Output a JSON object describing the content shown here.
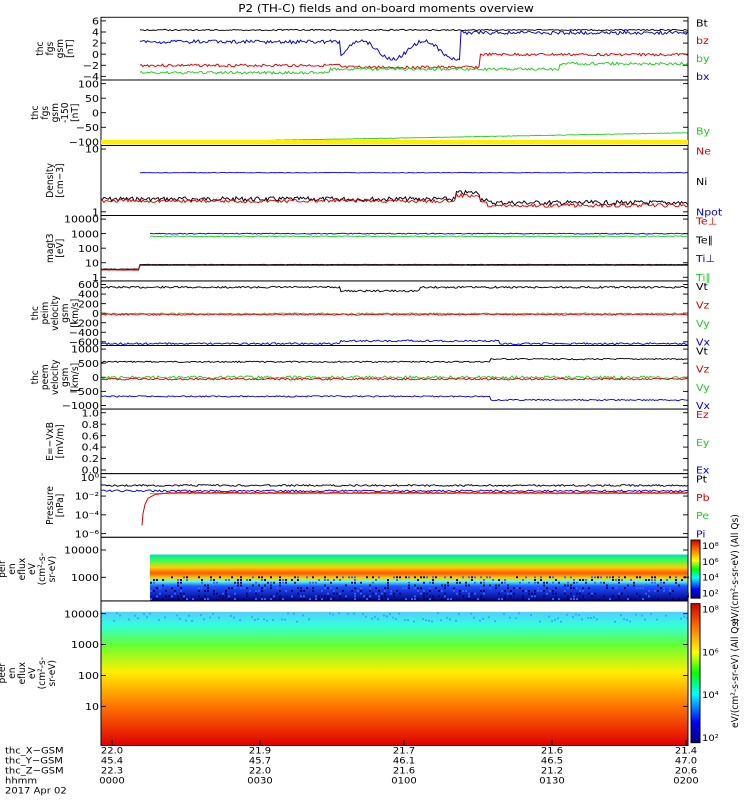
{
  "title": "P2 (TH-C) fields and on-board moments overview",
  "colors": {
    "black": "#000000",
    "red": "#e00000",
    "green": "#22cc22",
    "blue": "#0000dd",
    "yellow": "#ffee00"
  },
  "panels": [
    {
      "id": "fgs",
      "ylabel": [
        "thc",
        "fgs",
        "gsm",
        "[nT]"
      ],
      "yticks": [
        "6",
        "4",
        "2",
        "0",
        "−2",
        "−4"
      ],
      "legend": [
        {
          "t": "Bt",
          "c": "black"
        },
        {
          "t": "bz",
          "c": "red"
        },
        {
          "t": "by",
          "c": "green"
        },
        {
          "t": "bx",
          "c": "blue"
        }
      ]
    },
    {
      "id": "fgs_dsl",
      "ylabel": [
        "thc",
        "fgs",
        "gsm",
        "-150",
        "[nT]"
      ],
      "yticks": [
        "100",
        "50",
        "0",
        "−50",
        "−100"
      ],
      "legend": [
        {
          "t": "By",
          "c": "green"
        }
      ]
    },
    {
      "id": "density",
      "ylabel": [
        "Density",
        "[cm−3]"
      ],
      "yticks": [
        "10",
        "1"
      ],
      "legend": [
        {
          "t": "Ne",
          "c": "red"
        },
        {
          "t": "Ni",
          "c": "black"
        },
        {
          "t": "Npot",
          "c": "blue"
        }
      ]
    },
    {
      "id": "temp",
      "ylabel": [
        "magt3",
        "[eV]"
      ],
      "yticks": [
        "10000",
        "1000",
        "100",
        "10",
        "1"
      ],
      "legend": [
        {
          "t": "Te⊥",
          "c": "red"
        },
        {
          "t": "Te∥",
          "c": "black"
        },
        {
          "t": "Ti⊥",
          "c": "blue"
        },
        {
          "t": "Ti∥",
          "c": "green"
        }
      ]
    },
    {
      "id": "vi",
      "ylabel": [
        "thc",
        "peim",
        "velocity",
        "gsm",
        "[km/s]"
      ],
      "yticks": [
        "600",
        "400",
        "200",
        "0",
        "−200",
        "−400",
        "−600"
      ],
      "legend": [
        {
          "t": "Vt",
          "c": "black"
        },
        {
          "t": "Vz",
          "c": "red"
        },
        {
          "t": "Vy",
          "c": "green"
        },
        {
          "t": "Vx",
          "c": "blue"
        }
      ]
    },
    {
      "id": "ve",
      "ylabel": [
        "thc",
        "peem",
        "velocity",
        "gsm",
        "[km/s]"
      ],
      "yticks": [
        "1000",
        "500",
        "0",
        "−500",
        "−1000"
      ],
      "legend": [
        {
          "t": "Vt",
          "c": "black"
        },
        {
          "t": "Vz",
          "c": "red"
        },
        {
          "t": "Vy",
          "c": "green"
        },
        {
          "t": "Vx",
          "c": "blue"
        }
      ]
    },
    {
      "id": "efield",
      "ylabel": [
        "E=−VxB",
        "[mV/m]"
      ],
      "yticks": [
        "1.0",
        "0.8",
        "0.6",
        "0.4",
        "0.2",
        "0.0"
      ],
      "legend": [
        {
          "t": "Ez",
          "c": "red"
        },
        {
          "t": "Ey",
          "c": "green"
        },
        {
          "t": "Ex",
          "c": "blue"
        }
      ]
    },
    {
      "id": "pressure",
      "ylabel": [
        "Pressure",
        "[nPa]"
      ],
      "yticks": [
        "10⁰",
        "10⁻²",
        "10⁻⁴",
        "10⁻⁶"
      ],
      "legend": [
        {
          "t": "Pt",
          "c": "black"
        },
        {
          "t": "Pb",
          "c": "red"
        },
        {
          "t": "Pe",
          "c": "green"
        },
        {
          "t": "Pi",
          "c": "blue"
        }
      ]
    },
    {
      "id": "ion_spec",
      "ylabel": [
        "thc",
        "peir",
        "en",
        "eflux",
        "eV",
        "(cm²-s-",
        "sr-eV)"
      ],
      "yticks": [
        "10000",
        "1000"
      ],
      "cbar_ticks": [
        "10⁸",
        "10⁶",
        "10⁴",
        "10²"
      ],
      "cbar_label": "eV/(cm²-s-sr-eV) (All Qs)"
    },
    {
      "id": "ele_spec",
      "ylabel": [
        "thc",
        "peer",
        "en",
        "eflux",
        "eV",
        "(cm²-s-",
        "sr-eV)"
      ],
      "yticks": [
        "10000",
        "1000",
        "100",
        "10"
      ],
      "cbar_ticks": [
        "10⁸",
        "10⁶",
        "10⁴",
        "10²"
      ],
      "cbar_label": "eV/(cm²-s-sr-eV) (All Qs)"
    }
  ],
  "xaxis": {
    "rows": [
      {
        "label": "thc_X−GSM",
        "vals": [
          "22.0",
          "21.9",
          "21.7",
          "21.6",
          "21.4"
        ]
      },
      {
        "label": "thc_Y−GSM",
        "vals": [
          "45.4",
          "45.7",
          "46.1",
          "46.5",
          "47.0"
        ]
      },
      {
        "label": "thc_Z−GSM",
        "vals": [
          "22.3",
          "22.0",
          "21.6",
          "21.2",
          "20.6"
        ]
      },
      {
        "label": "hhmm",
        "vals": [
          "0000",
          "0030",
          "0100",
          "0130",
          "0200"
        ]
      }
    ],
    "date": "2017 Apr 02"
  },
  "chart_data": [
    {
      "type": "line",
      "title": "P2 (TH-C) fields and on-board moments overview",
      "ylabel": "thc fgs gsm [nT]",
      "ylim": [
        -4,
        6
      ],
      "x": [
        "0000",
        "0030",
        "0100",
        "0130",
        "0200"
      ],
      "series": [
        {
          "name": "Bt",
          "values": [
            4,
            4,
            3.8,
            3.7,
            3.6
          ]
        },
        {
          "name": "bz",
          "values": [
            -1.5,
            -1.2,
            -2.5,
            0,
            -0.2
          ]
        },
        {
          "name": "by",
          "values": [
            -3.5,
            -2.8,
            -2.2,
            -1.5,
            -1.3
          ]
        },
        {
          "name": "bx",
          "values": [
            2.5,
            1,
            -2.5,
            3.5,
            3.2
          ]
        }
      ]
    },
    {
      "type": "line",
      "ylabel": "thc fgs gsm -150 [nT]",
      "ylim": [
        -120,
        100
      ],
      "series": [
        {
          "name": "By",
          "values": [
            -108,
            -106,
            -100,
            -94,
            -85
          ]
        }
      ]
    },
    {
      "type": "line",
      "ylabel": "Density [cm−3]",
      "ylim": [
        1,
        10
      ],
      "log": true,
      "series": [
        {
          "name": "Ne",
          "values": [
            1.9,
            1.8,
            2.2,
            1.6,
            1.6
          ]
        },
        {
          "name": "Ni",
          "values": [
            2.0,
            1.9,
            2.4,
            1.7,
            1.7
          ]
        },
        {
          "name": "Npot",
          "values": [
            5.5,
            5.6,
            5.5,
            5.4,
            5.5
          ]
        }
      ]
    },
    {
      "type": "line",
      "ylabel": "magt3 [eV]",
      "ylim": [
        1,
        10000
      ],
      "log": true,
      "series": [
        {
          "name": "Te∥",
          "values": [
            10,
            17,
            17,
            17,
            17
          ]
        },
        {
          "name": "Ti∥",
          "values": [
            1100,
            1100,
            1100,
            1200,
            1200
          ]
        },
        {
          "name": "Ti⊥",
          "values": [
            1400,
            1300,
            1400,
            1400,
            1400
          ]
        }
      ]
    },
    {
      "type": "line",
      "ylabel": "thc peim velocity gsm [km/s]",
      "ylim": [
        -600,
        600
      ],
      "series": [
        {
          "name": "Vt",
          "values": [
            530,
            530,
            480,
            530,
            530
          ]
        },
        {
          "name": "Vz",
          "values": [
            0,
            0,
            0,
            0,
            0
          ]
        },
        {
          "name": "Vy",
          "values": [
            0,
            0,
            10,
            0,
            0
          ]
        },
        {
          "name": "Vx",
          "values": [
            -530,
            -520,
            -480,
            -520,
            -520
          ]
        }
      ]
    },
    {
      "type": "line",
      "ylabel": "thc peem velocity gsm [km/s]",
      "ylim": [
        -1000,
        1000
      ],
      "series": [
        {
          "name": "Vt",
          "values": [
            550,
            560,
            560,
            640,
            660
          ]
        },
        {
          "name": "Vz",
          "values": [
            0,
            0,
            0,
            0,
            0
          ]
        },
        {
          "name": "Vy",
          "values": [
            20,
            20,
            20,
            20,
            20
          ]
        },
        {
          "name": "Vx",
          "values": [
            -560,
            -560,
            -560,
            -640,
            -660
          ]
        }
      ]
    },
    {
      "type": "line",
      "ylabel": "E=−VxB [mV/m]",
      "ylim": [
        0,
        1
      ],
      "series": []
    },
    {
      "type": "line",
      "ylabel": "Pressure [nPa]",
      "log": true,
      "series": [
        {
          "name": "Pt",
          "values": [
            0.05,
            0.05,
            0.05,
            0.05,
            0.05
          ]
        },
        {
          "name": "Pb",
          "values": [
            0.006,
            0.006,
            0.006,
            0.006,
            0.006
          ]
        },
        {
          "name": "Pe",
          "values": [
            0.004,
            0.004,
            0.004,
            0.004,
            0.004
          ]
        },
        {
          "name": "Pi",
          "values": [
            0.03,
            0.03,
            0.03,
            0.03,
            0.03
          ]
        }
      ]
    },
    {
      "type": "heatmap",
      "ylabel": "thc peir en eflux eV/(cm²-s-sr-eV)",
      "ylim": [
        5,
        30000
      ],
      "log": true
    },
    {
      "type": "heatmap",
      "ylabel": "thc peer en eflux eV/(cm²-s-sr-eV)",
      "ylim": [
        5,
        30000
      ],
      "log": true
    }
  ]
}
